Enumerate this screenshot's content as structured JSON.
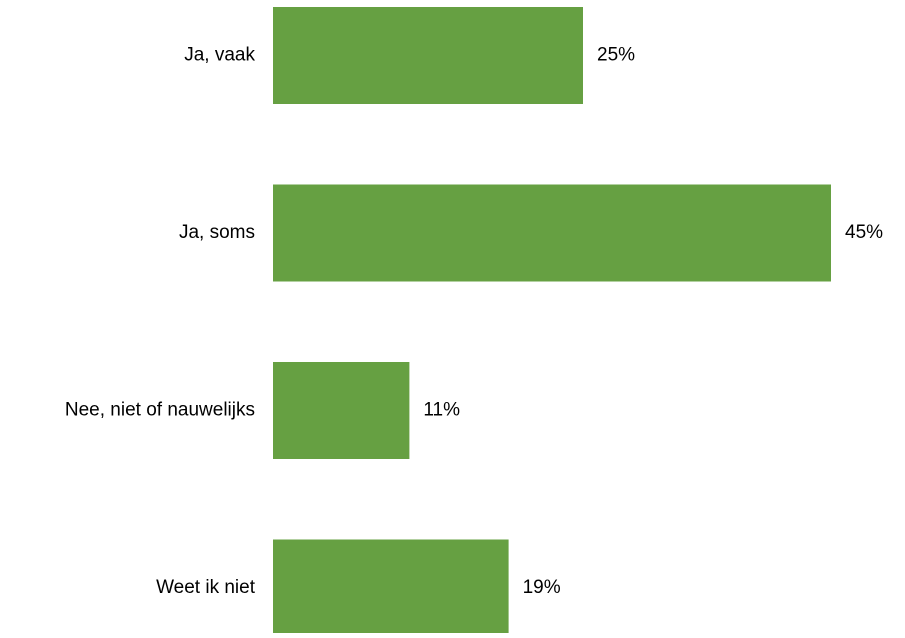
{
  "chart_data": {
    "type": "barh",
    "categories": [
      "Ja, vaak",
      "Ja, soms",
      "Nee, niet of nauwelijks",
      "Weet ik niet"
    ],
    "values": [
      25,
      45,
      11,
      19
    ],
    "value_labels": [
      "25%",
      "45%",
      "11%",
      "19%"
    ],
    "color": "#66a042"
  }
}
